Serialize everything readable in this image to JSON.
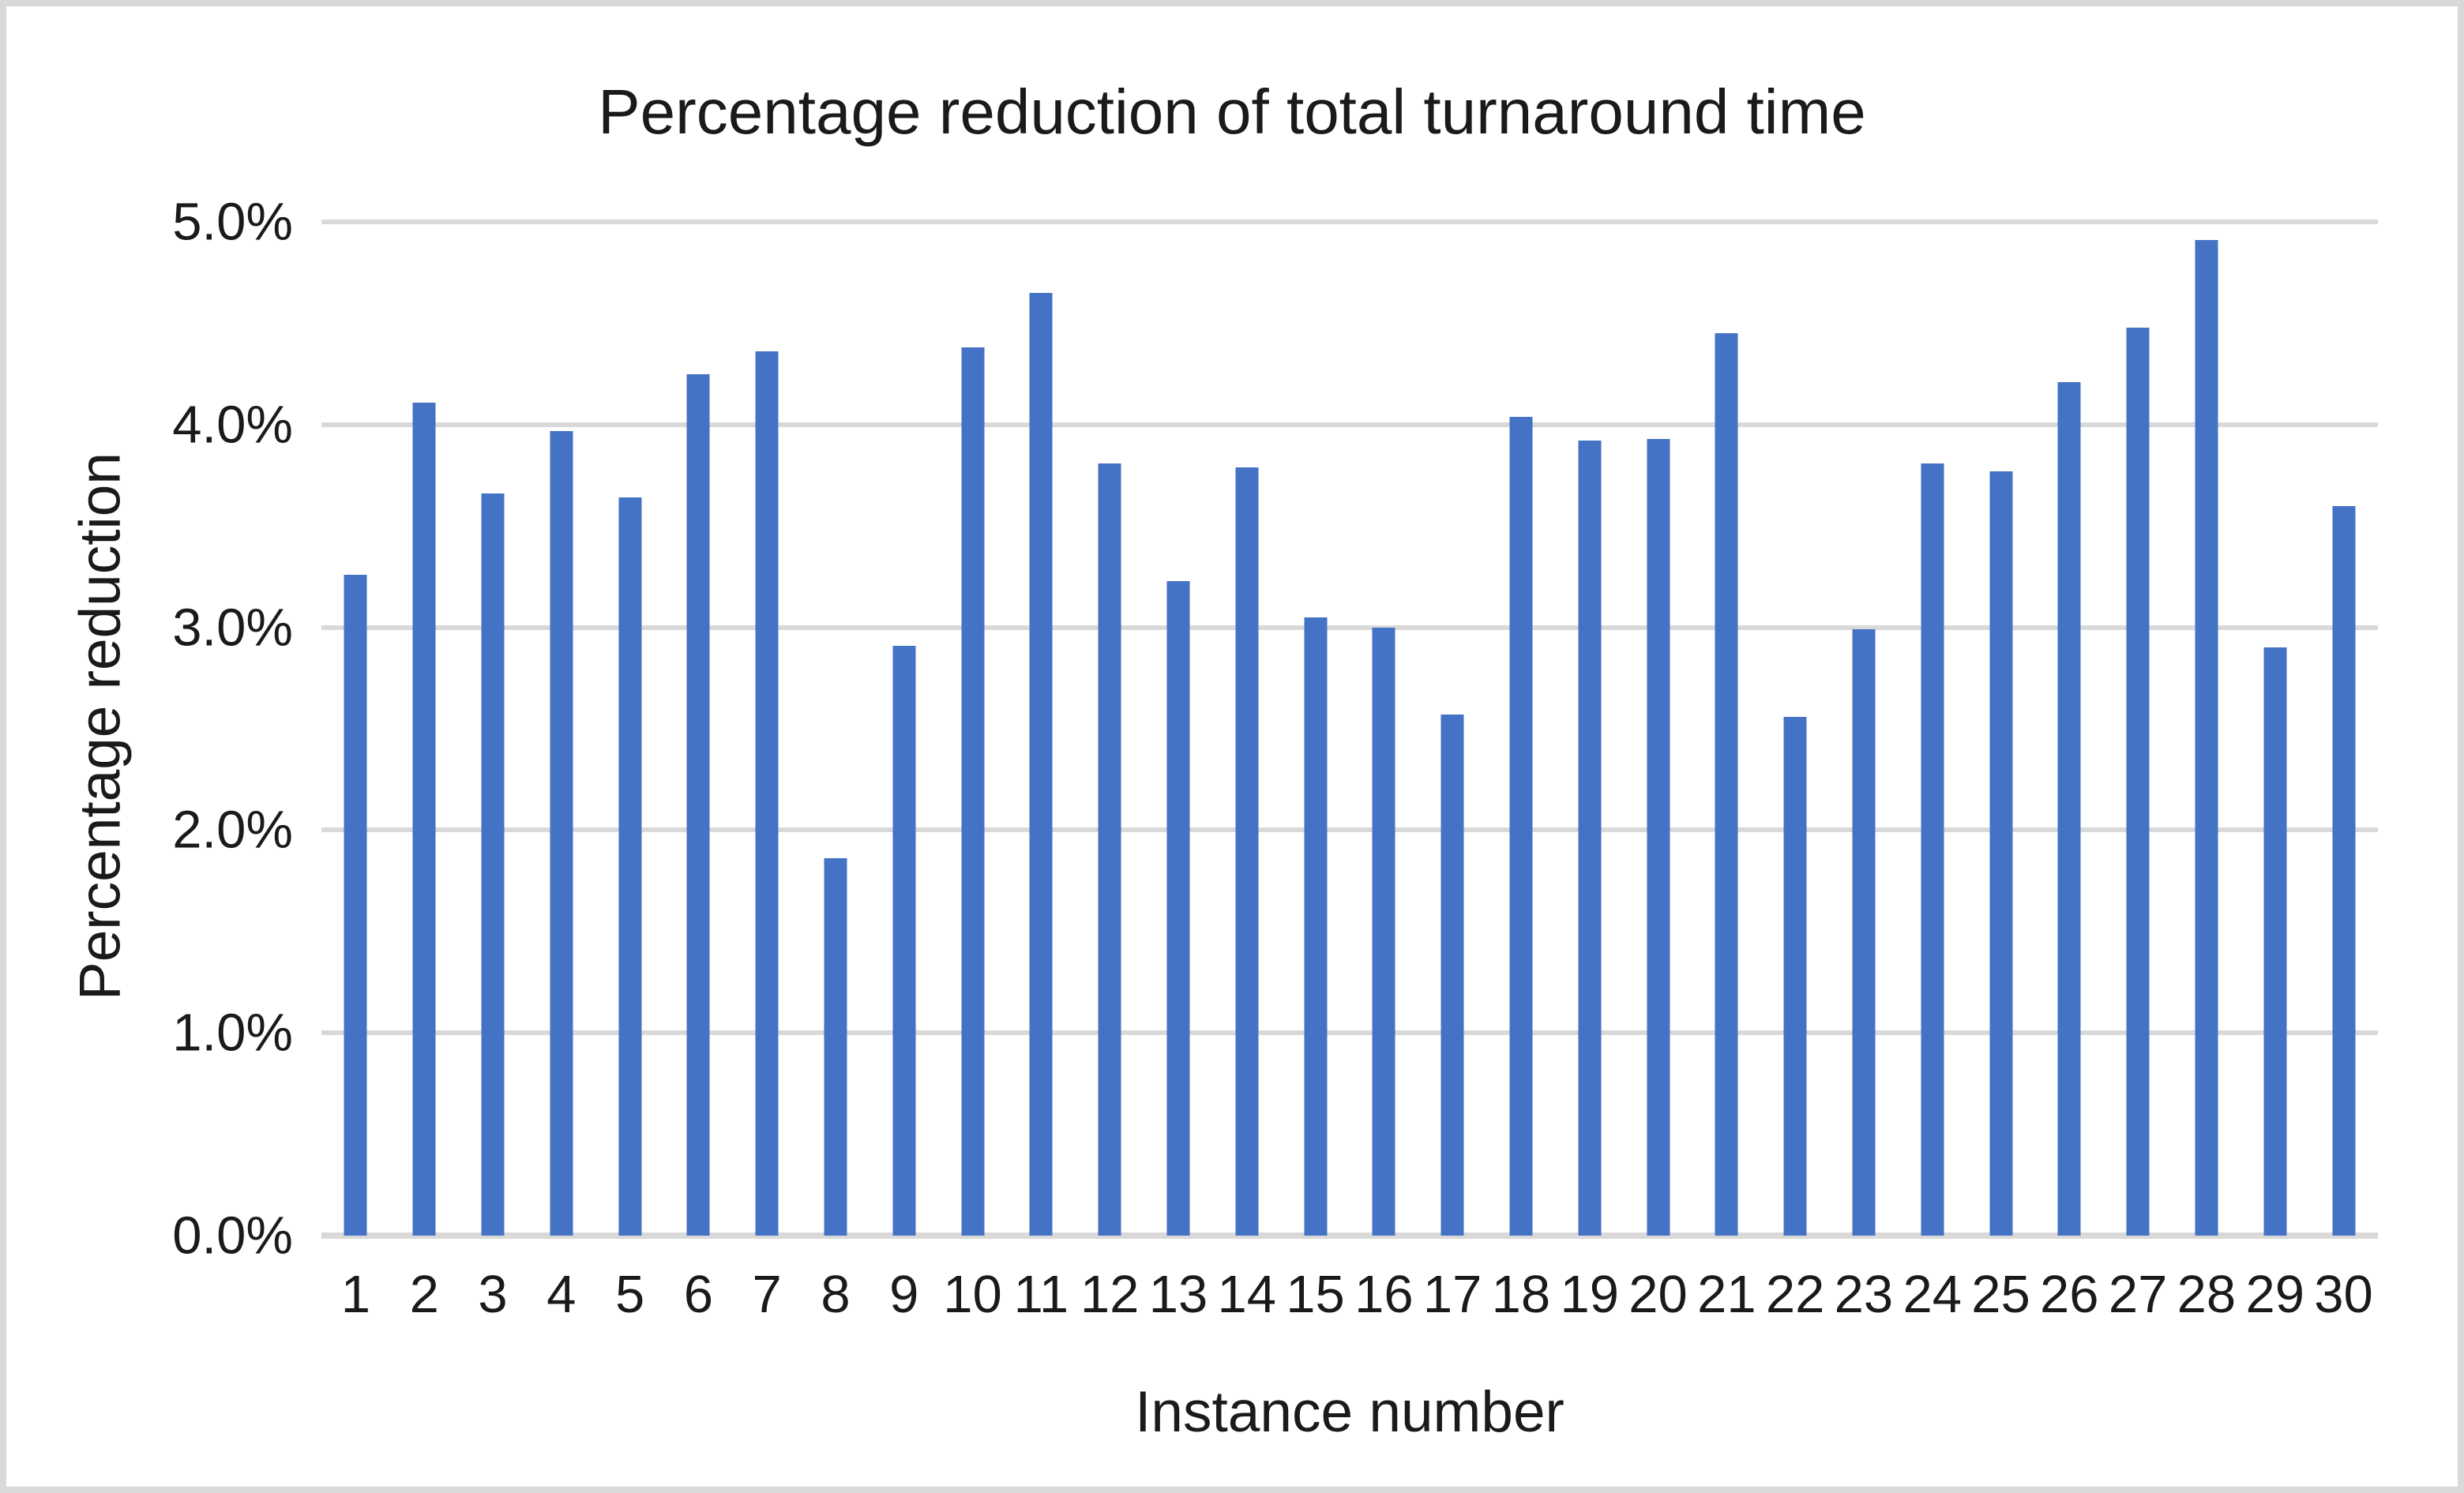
{
  "chart_data": {
    "type": "bar",
    "title": "Percentage reduction of total turnaround time",
    "xlabel": "Instance number",
    "ylabel": "Percentage reduction",
    "categories": [
      "1",
      "2",
      "3",
      "4",
      "5",
      "6",
      "7",
      "8",
      "9",
      "10",
      "11",
      "12",
      "13",
      "14",
      "15",
      "16",
      "17",
      "18",
      "19",
      "20",
      "21",
      "22",
      "23",
      "24",
      "25",
      "26",
      "27",
      "28",
      "29",
      "30"
    ],
    "values": [
      3.26,
      4.11,
      3.66,
      3.97,
      3.64,
      4.25,
      4.36,
      1.86,
      2.91,
      4.38,
      4.65,
      3.81,
      3.23,
      3.79,
      3.05,
      3.0,
      2.57,
      4.04,
      3.92,
      3.93,
      4.45,
      2.56,
      2.99,
      3.81,
      3.77,
      4.21,
      4.48,
      4.91,
      2.9,
      3.6
    ],
    "value_unit": "%",
    "ylim": [
      0,
      5
    ],
    "ytick_interval": 1.0,
    "ytick_labels": [
      "0.0%",
      "1.0%",
      "2.0%",
      "3.0%",
      "4.0%",
      "5.0%"
    ],
    "grid": "horizontal-major-only",
    "legend": "none",
    "colors": {
      "bar": "#4472C4",
      "gridline": "#D9D9D9",
      "axis_line": "#D9D9D9",
      "text": "#1A1A1A",
      "frame_border": "#D9D9D9",
      "background": "#FFFFFF"
    }
  }
}
